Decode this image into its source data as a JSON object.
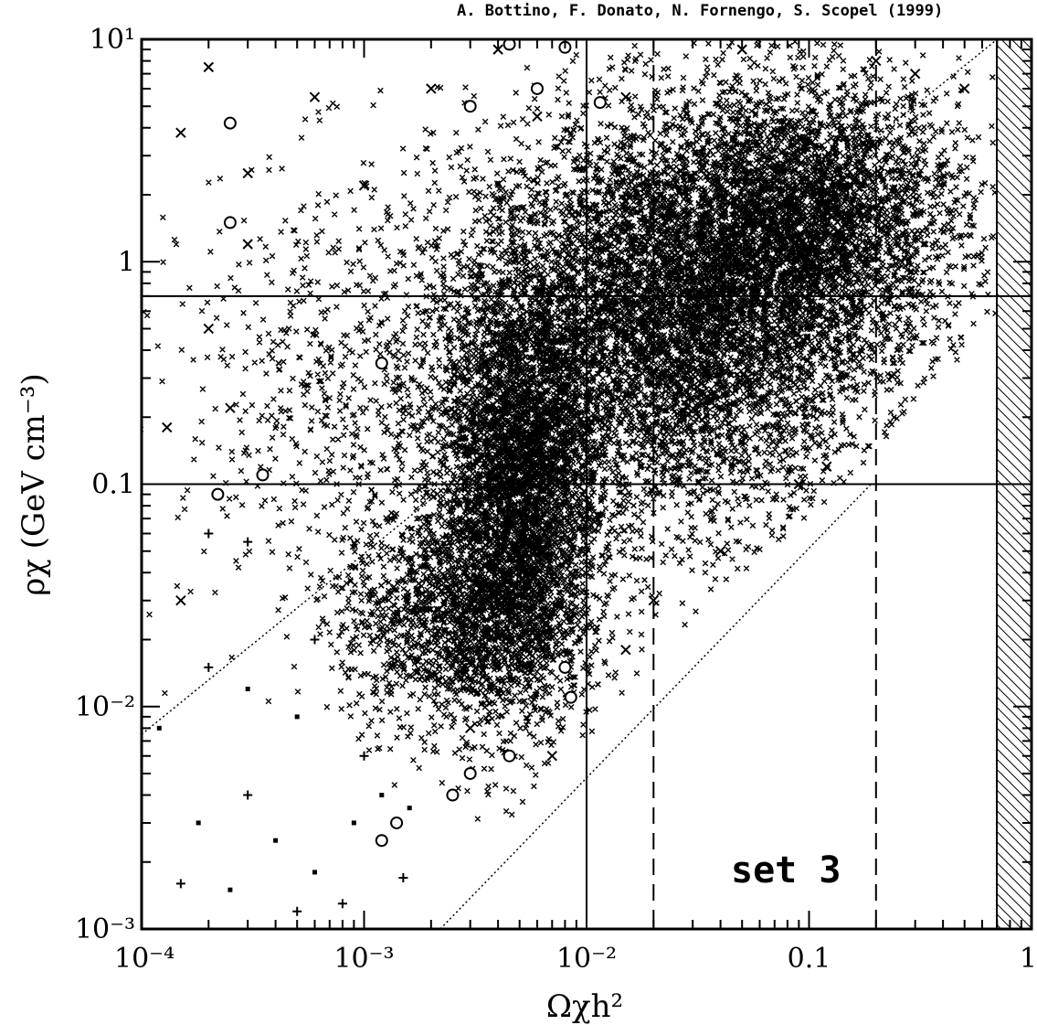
{
  "attribution": "A. Bottino, F. Donato, N. Fornengo, S. Scopel (1999)",
  "chart_data": {
    "type": "scatter",
    "xscale": "log",
    "yscale": "log",
    "xlim": [
      0.0001,
      1
    ],
    "ylim": [
      0.001,
      10
    ],
    "xlabel": "Ωχh²",
    "ylabel": "ρχ (GeV cm⁻³)",
    "x_tick_labels": [
      "10⁻⁴",
      "10⁻³",
      "10⁻²",
      "0.1",
      "1"
    ],
    "y_tick_labels": [
      "10⁻³",
      "10⁻²",
      "0.1",
      "1",
      "10¹"
    ],
    "annotation": "set 3",
    "reference_lines": {
      "solid_vertical_x": [
        0.01
      ],
      "dashed_vertical_x": [
        0.02,
        0.2
      ],
      "solid_horizontal_y": [
        0.1,
        0.7
      ],
      "excluded_region_x_from": 0.7,
      "dotted_diagonal": [
        [
          0.0001,
          0.0075
        ],
        [
          0.7,
          10
        ],
        [
          0.0022,
          0.001
        ],
        [
          0.19,
          0.1
        ]
      ]
    },
    "series": [
      {
        "marker": "x",
        "description_points": [
          [
            0.00015,
            3.8
          ],
          [
            0.0002,
            7.5
          ],
          [
            0.0003,
            2.5
          ],
          [
            0.0006,
            5.5
          ],
          [
            0.001,
            2.2
          ],
          [
            0.002,
            6
          ],
          [
            0.004,
            9
          ],
          [
            0.006,
            4.5
          ],
          [
            0.015,
            5.5
          ],
          [
            0.05,
            9
          ],
          [
            0.2,
            8
          ],
          [
            0.3,
            7
          ],
          [
            0.5,
            6
          ],
          [
            0.12,
            0.12
          ],
          [
            0.09,
            0.1
          ],
          [
            0.04,
            0.05
          ],
          [
            0.02,
            0.03
          ],
          [
            0.015,
            0.018
          ],
          [
            0.007,
            0.006
          ],
          [
            0.003,
            0.008
          ],
          [
            0.00013,
            0.18
          ],
          [
            0.00015,
            0.03
          ],
          [
            0.0002,
            0.5
          ],
          [
            0.00025,
            0.22
          ],
          [
            0.0003,
            1.2
          ]
        ]
      },
      {
        "marker": "o",
        "description_points": [
          [
            0.00025,
            4.2
          ],
          [
            0.00025,
            1.5
          ],
          [
            0.0012,
            0.35
          ],
          [
            0.003,
            5
          ],
          [
            0.0045,
            9.5
          ],
          [
            0.006,
            6
          ],
          [
            0.008,
            9.2
          ],
          [
            0.008,
            0.015
          ],
          [
            0.0085,
            0.011
          ],
          [
            0.0115,
            5.2
          ],
          [
            0.0045,
            0.006
          ],
          [
            0.003,
            0.005
          ],
          [
            0.0025,
            0.004
          ],
          [
            0.0014,
            0.003
          ],
          [
            0.0012,
            0.0025
          ],
          [
            0.00035,
            0.11
          ],
          [
            0.00022,
            0.09
          ]
        ]
      },
      {
        "marker": "+",
        "description_points": [
          [
            0.0002,
            0.06
          ],
          [
            0.0003,
            0.055
          ],
          [
            0.00015,
            0.0016
          ],
          [
            0.0005,
            0.0012
          ],
          [
            0.0008,
            0.0013
          ],
          [
            0.0015,
            0.0017
          ],
          [
            0.0002,
            0.015
          ],
          [
            0.0006,
            0.02
          ],
          [
            0.001,
            0.006
          ],
          [
            0.0003,
            0.004
          ]
        ]
      },
      {
        "marker": "dot",
        "description_points": [
          [
            0.00012,
            0.008
          ],
          [
            0.00018,
            0.003
          ],
          [
            0.00025,
            0.0015
          ],
          [
            0.0004,
            0.0025
          ],
          [
            0.0006,
            0.0018
          ],
          [
            0.0009,
            0.003
          ],
          [
            0.0012,
            0.004
          ],
          [
            0.0016,
            0.0035
          ],
          [
            0.0003,
            0.012
          ],
          [
            0.0005,
            0.009
          ]
        ]
      }
    ]
  }
}
